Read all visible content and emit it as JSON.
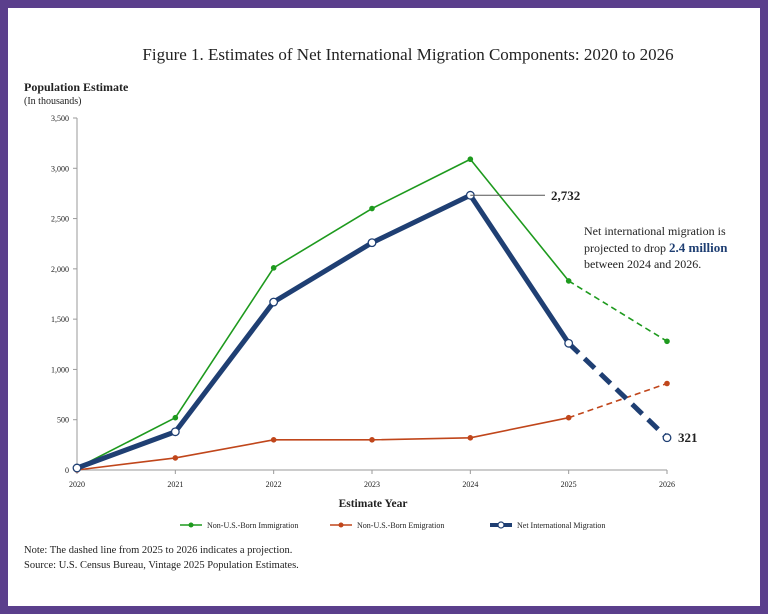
{
  "chart_data": {
    "type": "line",
    "title": "Figure 1. Estimates of Net International Migration Components: 2020 to 2026",
    "ylabel": "Population Estimate",
    "yunit": "(In thousands)",
    "xlabel": "Estimate Year",
    "x": [
      "2020",
      "2021",
      "2022",
      "2023",
      "2024",
      "2025",
      "2026"
    ],
    "ylim": [
      0,
      3500
    ],
    "yticks": [
      0,
      500,
      1000,
      1500,
      2000,
      2500,
      3000,
      3500
    ],
    "ytick_labels": [
      "0",
      "500",
      "1,000",
      "1,500",
      "2,000",
      "2,500",
      "3,000",
      "3,500"
    ],
    "grid": false,
    "legend_position": "bottom",
    "projection_from_index": 5,
    "series": [
      {
        "name": "Non-U.S.-Born Immigration",
        "color": "#1e9a1e",
        "style": "thin",
        "marker": "filled",
        "values": [
          20,
          520,
          2010,
          2600,
          3090,
          1880,
          1280
        ]
      },
      {
        "name": "Non-U.S.-Born Emigration",
        "color": "#c0461b",
        "style": "thin",
        "marker": "filled",
        "values": [
          0,
          120,
          300,
          300,
          320,
          520,
          860
        ]
      },
      {
        "name": "Net International Migration",
        "color": "#1f3f73",
        "style": "thick",
        "marker": "hollow",
        "values": [
          20,
          380,
          1670,
          2260,
          2732,
          1260,
          321
        ]
      }
    ],
    "annotations": {
      "label_2024": "2,732",
      "label_2026": "321",
      "callout_line1": "Net international migration is",
      "callout_line2_pre": "projected to drop ",
      "callout_line2_bold": "2.4 million",
      "callout_line3": "between 2024 and 2026."
    },
    "notes": [
      "Note: The dashed line from 2025 to 2026 indicates a projection.",
      "Source: U.S. Census Bureau, Vintage 2025 Population Estimates."
    ]
  },
  "colors": {
    "border": "#5b3f8c",
    "background": "#ffffff",
    "axis": "#9a9a9a"
  }
}
